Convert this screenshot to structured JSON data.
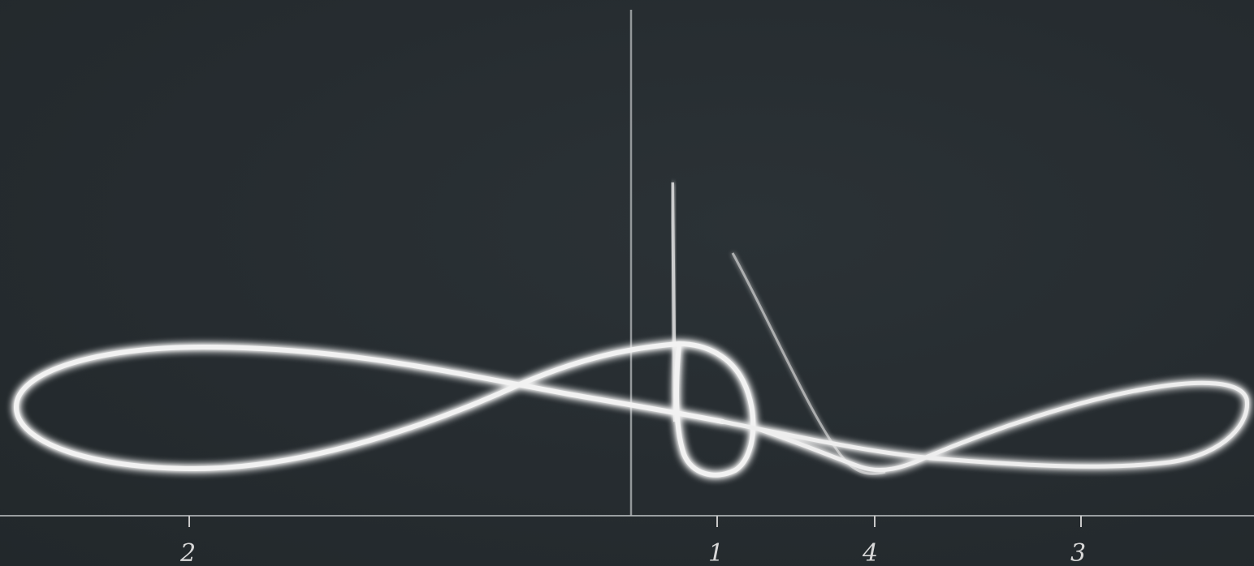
{
  "axis": {
    "tick_labels": [
      "2",
      "1",
      "4",
      "3"
    ]
  },
  "colors": {
    "background": "#262c30",
    "curve": "#f2f2f2",
    "axis": "#c8c8c8"
  }
}
